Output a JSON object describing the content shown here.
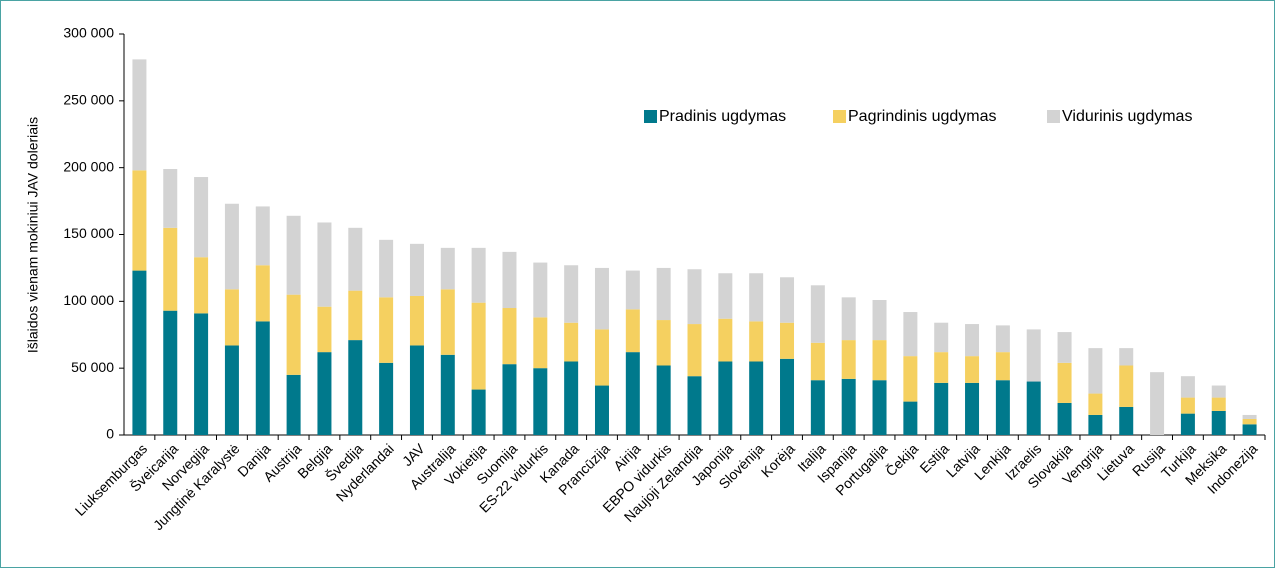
{
  "chart_data": {
    "type": "stacked_bar",
    "ylabel": "Išlaidos vienam mokiniui JAV doleriais",
    "categories": [
      "Liuksemburgas",
      "Šveicarija",
      "Norvegija",
      "Jungtinė Karalystė",
      "Danija",
      "Austrija",
      "Belgija",
      "Švedija",
      "Nyderlandai",
      "JAV",
      "Australija",
      "Vokietija",
      "Suomija",
      "ES-22 vidurkis",
      "Kanada",
      "Prancūzija",
      "Airija",
      "EBPO vidurkis",
      "Naujoji Zelandija",
      "Japonija",
      "Slovėnija",
      "Korėja",
      "Italija",
      "Ispanija",
      "Portugalija",
      "Čekija",
      "Estija",
      "Latvija",
      "Lenkija",
      "Izraelis",
      "Slovakija",
      "Vengrija",
      "Lietuva",
      "Rusija",
      "Turkija",
      "Meksika",
      "Indonezija"
    ],
    "series": [
      {
        "name": "Pradinis ugdymas",
        "color": "#00798c",
        "values": [
          123000,
          93000,
          91000,
          67000,
          85000,
          45000,
          62000,
          71000,
          54000,
          67000,
          60000,
          34000,
          53000,
          50000,
          55000,
          37000,
          62000,
          52000,
          44000,
          55000,
          55000,
          57000,
          41000,
          42000,
          41000,
          25000,
          39000,
          39000,
          41000,
          40000,
          24000,
          15000,
          21000,
          0,
          16000,
          18000,
          8000
        ]
      },
      {
        "name": "Pagrindinis ugdymas",
        "color": "#f5d060",
        "values": [
          75000,
          62000,
          42000,
          42000,
          42000,
          60000,
          34000,
          37000,
          49000,
          37000,
          49000,
          65000,
          42000,
          38000,
          29000,
          42000,
          32000,
          34000,
          39000,
          32000,
          30000,
          27000,
          28000,
          29000,
          30000,
          34000,
          23000,
          20000,
          21000,
          0,
          30000,
          16000,
          31000,
          0,
          12000,
          10000,
          4000
        ]
      },
      {
        "name": "Vidurinis ugdymas",
        "color": "#d3d3d3",
        "values": [
          83000,
          44000,
          60000,
          64000,
          44000,
          59000,
          63000,
          47000,
          43000,
          39000,
          31000,
          41000,
          42000,
          41000,
          43000,
          46000,
          29000,
          39000,
          41000,
          34000,
          36000,
          34000,
          43000,
          32000,
          30000,
          33000,
          22000,
          24000,
          20000,
          39000,
          23000,
          34000,
          13000,
          47000,
          16000,
          9000,
          3000
        ]
      }
    ],
    "ylim": [
      0,
      300000
    ],
    "yticks": [
      {
        "value": 0,
        "label": "0"
      },
      {
        "value": 50000,
        "label": "50 000"
      },
      {
        "value": 100000,
        "label": "100 000"
      },
      {
        "value": 150000,
        "label": "150 000"
      },
      {
        "value": 200000,
        "label": "200 000"
      },
      {
        "value": 250000,
        "label": "250 000"
      },
      {
        "value": 300000,
        "label": "300 000"
      }
    ]
  }
}
